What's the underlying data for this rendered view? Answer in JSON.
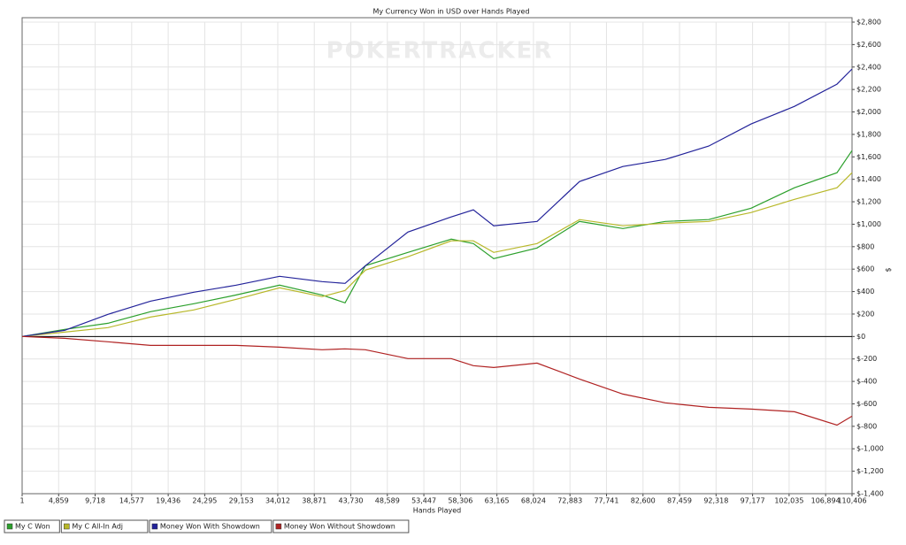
{
  "chart_data": {
    "type": "line",
    "title": "My Currency Won in USD over Hands Played",
    "watermark": "POKERTRACKER",
    "x_label": "Hands Played",
    "y_label": "$",
    "x": [
      1,
      5650,
      11420,
      17070,
      22830,
      28480,
      34250,
      39900,
      42960,
      45670,
      51320,
      57090,
      60030,
      62740,
      68500,
      74150,
      79920,
      85570,
      91340,
      96990,
      102750,
      108400,
      110406
    ],
    "series": [
      {
        "name": "My C Won",
        "color": "#2ca02c",
        "values": [
          0,
          63,
          118,
          221,
          292,
          370,
          457,
          370,
          300,
          631,
          749,
          867,
          828,
          694,
          788,
          1025,
          962,
          1025,
          1041,
          1143,
          1325,
          1459,
          1656
        ]
      },
      {
        "name": "My C All-In Adj",
        "color": "#b8b82a",
        "values": [
          0,
          39,
          79,
          173,
          237,
          331,
          434,
          355,
          410,
          591,
          710,
          852,
          852,
          749,
          828,
          1041,
          986,
          1009,
          1025,
          1104,
          1222,
          1325,
          1459
        ]
      },
      {
        "name": "Money Won With Showdown",
        "color": "#23239a",
        "values": [
          0,
          55,
          197,
          315,
          394,
          457,
          536,
          489,
          473,
          631,
          930,
          1065,
          1128,
          986,
          1025,
          1380,
          1514,
          1577,
          1696,
          1893,
          2050,
          2248,
          2382
        ]
      },
      {
        "name": "Money Won Without Showdown",
        "color": "#b02222",
        "values": [
          0,
          -16,
          -47,
          -79,
          -79,
          -79,
          -95,
          -118,
          -110,
          -118,
          -197,
          -197,
          -260,
          -276,
          -237,
          -379,
          -513,
          -591,
          -631,
          -647,
          -670,
          -789,
          -710
        ]
      }
    ],
    "xlim": [
      1,
      110406
    ],
    "xticks": [
      1,
      {
        "value": 4859,
        "label": "4,859"
      },
      {
        "value": 9718,
        "label": "9,718"
      },
      {
        "value": 14577,
        "label": "14,577"
      },
      {
        "value": 19436,
        "label": "19,436"
      },
      {
        "value": 24295,
        "label": "24,295"
      },
      {
        "value": 29153,
        "label": "29,153"
      },
      {
        "value": 34012,
        "label": "34,012"
      },
      {
        "value": 38871,
        "label": "38,871"
      },
      {
        "value": 43730,
        "label": "43,730"
      },
      {
        "value": 48589,
        "label": "48,589"
      },
      {
        "value": 53447,
        "label": "53,447"
      },
      {
        "value": 58306,
        "label": "58,306"
      },
      {
        "value": 63165,
        "label": "63,165"
      },
      {
        "value": 68024,
        "label": "68,024"
      },
      {
        "value": 72883,
        "label": "72,883"
      },
      {
        "value": 77741,
        "label": "77,741"
      },
      {
        "value": 82600,
        "label": "82,600"
      },
      {
        "value": 87459,
        "label": "87,459"
      },
      {
        "value": 92318,
        "label": "92,318"
      },
      {
        "value": 97177,
        "label": "97,177"
      },
      {
        "value": 102035,
        "label": "102,035"
      },
      {
        "value": 106894,
        "label": "106,894"
      },
      {
        "value": 110406,
        "label": "110,406"
      }
    ],
    "ylim": [
      -1400,
      2800
    ],
    "yticks": [
      {
        "value": 2800,
        "label": "$2,800"
      },
      {
        "value": 2600,
        "label": "$2,600"
      },
      {
        "value": 2400,
        "label": "$2,400"
      },
      {
        "value": 2200,
        "label": "$2,200"
      },
      {
        "value": 2000,
        "label": "$2,000"
      },
      {
        "value": 1800,
        "label": "$1,800"
      },
      {
        "value": 1600,
        "label": "$1,600"
      },
      {
        "value": 1400,
        "label": "$1,400"
      },
      {
        "value": 1200,
        "label": "$1,200"
      },
      {
        "value": 1000,
        "label": "$1,000"
      },
      {
        "value": 800,
        "label": "$800"
      },
      {
        "value": 600,
        "label": "$600"
      },
      {
        "value": 400,
        "label": "$400"
      },
      {
        "value": 200,
        "label": "$200"
      },
      {
        "value": 0,
        "label": "$0"
      },
      {
        "value": -200,
        "label": "$-200"
      },
      {
        "value": -400,
        "label": "$-400"
      },
      {
        "value": -600,
        "label": "$-600"
      },
      {
        "value": -800,
        "label": "$-800"
      },
      {
        "value": -1000,
        "label": "$-1,000"
      },
      {
        "value": -1200,
        "label": "$-1,200"
      },
      {
        "value": -1400,
        "label": "$-1,400"
      }
    ],
    "grid": true,
    "y_axis_side": "right",
    "legend": "bottom-left"
  }
}
